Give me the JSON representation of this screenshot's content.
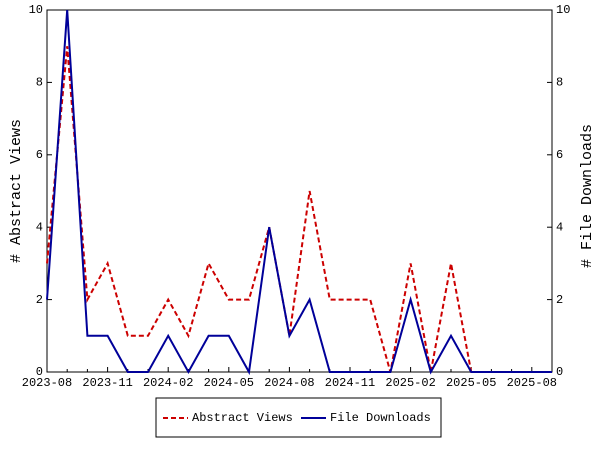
{
  "chart_data": {
    "type": "line",
    "categories": [
      "2023-08",
      null,
      null,
      "2023-11",
      null,
      null,
      "2024-02",
      null,
      null,
      "2024-05",
      null,
      null,
      "2024-08",
      null,
      null,
      "2024-11",
      null,
      null,
      "2025-02",
      null,
      null,
      "2025-05",
      null,
      null,
      "2025-08",
      null
    ],
    "ylabel": "# Abstract Views",
    "y2label": "# File Downloads",
    "ylim": [
      0,
      10
    ],
    "yticks": [
      0,
      2,
      4,
      6,
      8,
      10
    ],
    "y2lim": [
      0,
      10
    ],
    "y2ticks": [
      0,
      2,
      4,
      6,
      8,
      10
    ],
    "legend": "bottom",
    "series": [
      {
        "name": "Abstract Views",
        "color": "#cc0000",
        "dash": "dashed",
        "values": [
          3,
          9,
          2,
          3,
          1,
          1,
          2,
          1,
          3,
          2,
          2,
          4,
          1,
          5,
          2,
          2,
          2,
          0,
          3,
          0,
          3,
          0,
          0,
          0,
          0,
          0
        ]
      },
      {
        "name": "File Downloads",
        "color": "#000099",
        "axis": "y2",
        "values": [
          2,
          10,
          1,
          1,
          0,
          0,
          1,
          0,
          1,
          1,
          0,
          4,
          1,
          2,
          0,
          0,
          0,
          0,
          2,
          0,
          1,
          0,
          0,
          0,
          0,
          0
        ]
      }
    ]
  }
}
